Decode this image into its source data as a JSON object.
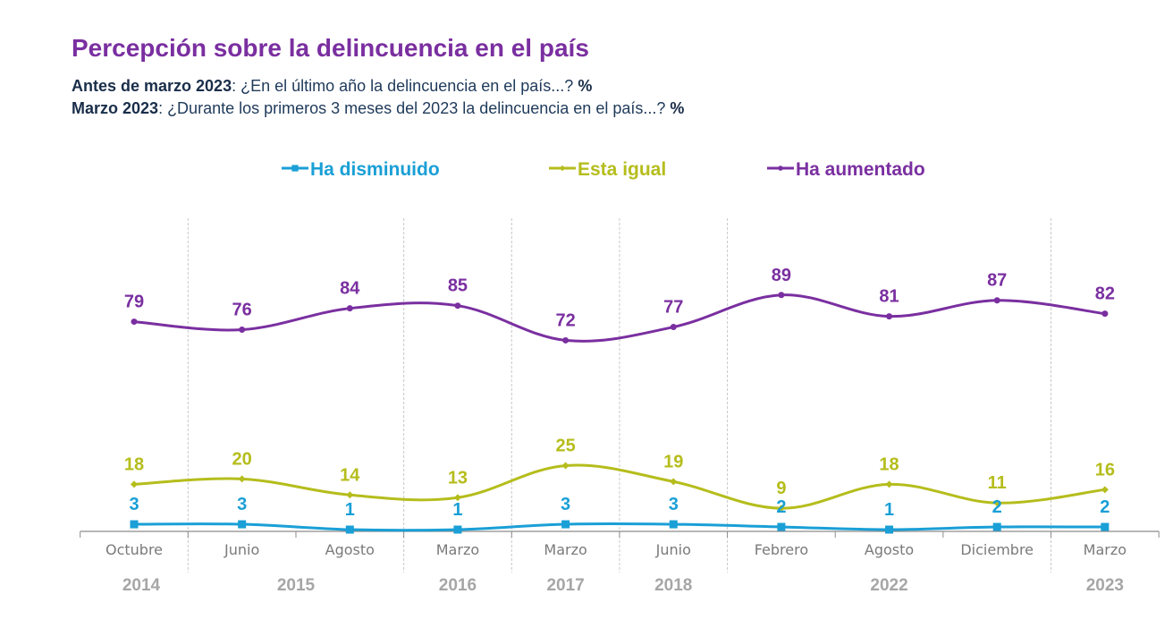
{
  "header": {
    "title": "Percepción sobre la delincuencia en el país",
    "line1_bold": "Antes de marzo 2023",
    "line1_text": ": ¿En el último año la delincuencia en el país...? ",
    "line1_pct": "%",
    "line2_bold": "Marzo 2023",
    "line2_text": ": ¿Durante los primeros 3 meses del 2023 la delincuencia en el país...? ",
    "line2_pct": "%"
  },
  "chart_data": {
    "type": "line",
    "title": "Percepción sobre la delincuencia en el país",
    "xlabel": "",
    "ylabel": "%",
    "ylim": [
      0,
      100
    ],
    "grid": "vertical dashed separators between years",
    "legend_position": "top-center",
    "categories": [
      "Octubre",
      "Junio",
      "Agosto",
      "Marzo",
      "Marzo",
      "Junio",
      "Febrero",
      "Agosto",
      "Diciembre",
      "Marzo"
    ],
    "year_groups": [
      {
        "label": "2014",
        "from": 0,
        "to": 0
      },
      {
        "label": "2015",
        "from": 1,
        "to": 2
      },
      {
        "label": "2016",
        "from": 3,
        "to": 3
      },
      {
        "label": "2017",
        "from": 4,
        "to": 4
      },
      {
        "label": "2018",
        "from": 5,
        "to": 5
      },
      {
        "label": "2022",
        "from": 6,
        "to": 8
      },
      {
        "label": "2023",
        "from": 9,
        "to": 9
      }
    ],
    "series": [
      {
        "name": "Ha disminuido",
        "color": "#1a9fd6",
        "marker": "square",
        "values": [
          3,
          3,
          1,
          1,
          3,
          3,
          2,
          1,
          2,
          2
        ]
      },
      {
        "name": "Esta igual",
        "color": "#b5bd1c",
        "marker": "diamond",
        "values": [
          18,
          20,
          14,
          13,
          25,
          19,
          9,
          18,
          11,
          16
        ]
      },
      {
        "name": "Ha aumentado",
        "color": "#7a2fa0",
        "marker": "circle",
        "values": [
          79,
          76,
          84,
          85,
          72,
          77,
          89,
          81,
          87,
          82
        ]
      }
    ]
  }
}
